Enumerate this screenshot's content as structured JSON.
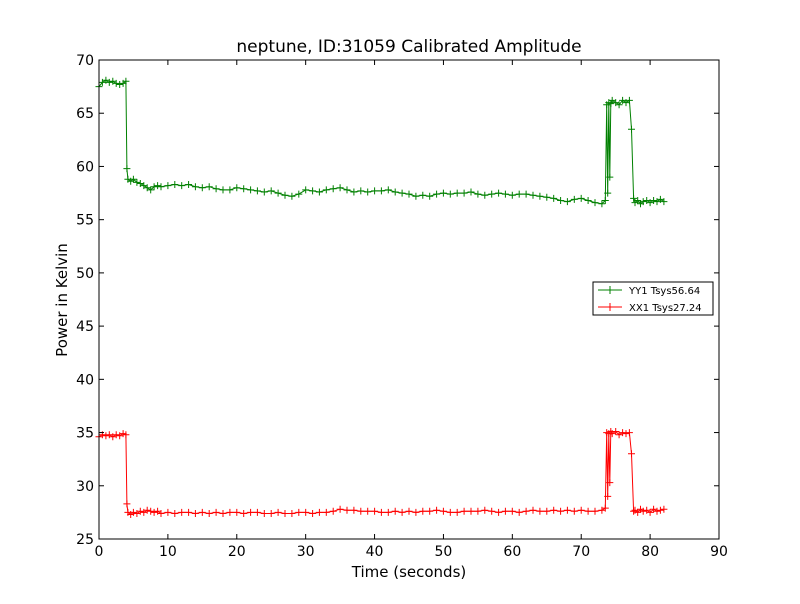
{
  "chart_data": {
    "type": "line",
    "title": "neptune, ID:31059 Calibrated Amplitude",
    "xlabel": "Time (seconds)",
    "ylabel": "Power in Kelvin",
    "xlim": [
      0,
      90
    ],
    "ylim": [
      25,
      70
    ],
    "xticks": [
      0,
      10,
      20,
      30,
      40,
      50,
      60,
      70,
      80,
      90
    ],
    "yticks": [
      25,
      30,
      35,
      40,
      45,
      50,
      55,
      60,
      65,
      70
    ],
    "grid": false,
    "legend_position": "center-right",
    "marker": "plus",
    "series": [
      {
        "name": "YY1 Tsys56.64",
        "color": "#008000",
        "x": [
          0,
          0.5,
          1,
          1.5,
          2,
          2.5,
          3,
          3.5,
          3.9,
          4.05,
          4.2,
          4.6,
          5,
          5.5,
          6,
          6.5,
          7,
          7.5,
          8,
          8.5,
          9,
          10,
          11,
          12,
          13,
          14,
          15,
          16,
          17,
          18,
          19,
          20,
          21,
          22,
          23,
          24,
          25,
          26,
          27,
          28,
          29,
          30,
          31,
          32,
          33,
          34,
          35,
          36,
          37,
          38,
          39,
          40,
          41,
          42,
          43,
          44,
          45,
          46,
          47,
          48,
          49,
          50,
          51,
          52,
          53,
          54,
          55,
          56,
          57,
          58,
          59,
          60,
          61,
          62,
          63,
          64,
          65,
          66,
          67,
          68,
          69,
          70,
          71,
          72,
          73,
          73.5,
          73.7,
          73.85,
          74.0,
          74.15,
          74.3,
          74.5,
          75,
          75.5,
          76,
          76.5,
          77,
          77.3,
          77.6,
          77.8,
          78.2,
          78.6,
          79,
          79.5,
          80,
          80.5,
          81,
          81.5,
          82
        ],
        "y": [
          67.5,
          67.9,
          68.1,
          67.9,
          68.0,
          67.8,
          67.7,
          67.8,
          68.0,
          59.8,
          58.8,
          58.6,
          58.8,
          58.5,
          58.4,
          58.2,
          58.0,
          57.8,
          58.1,
          58.2,
          58.1,
          58.2,
          58.3,
          58.2,
          58.3,
          58.1,
          58.0,
          58.1,
          57.9,
          57.8,
          57.8,
          58.0,
          57.9,
          57.8,
          57.7,
          57.6,
          57.7,
          57.5,
          57.3,
          57.2,
          57.4,
          57.8,
          57.7,
          57.6,
          57.8,
          57.9,
          58.0,
          57.8,
          57.6,
          57.7,
          57.6,
          57.7,
          57.7,
          57.8,
          57.6,
          57.5,
          57.4,
          57.2,
          57.3,
          57.2,
          57.4,
          57.5,
          57.4,
          57.5,
          57.5,
          57.6,
          57.4,
          57.3,
          57.4,
          57.5,
          57.4,
          57.3,
          57.4,
          57.4,
          57.3,
          57.2,
          57.1,
          57.0,
          56.8,
          56.7,
          56.9,
          57.0,
          56.8,
          56.6,
          56.5,
          56.8,
          65.8,
          57.5,
          66.0,
          59.0,
          65.9,
          66.2,
          66.0,
          65.8,
          66.2,
          66.0,
          66.2,
          63.5,
          57.0,
          56.6,
          56.8,
          56.5,
          56.7,
          56.8,
          56.6,
          56.8,
          56.7,
          56.9,
          56.7
        ]
      },
      {
        "name": "XX1 Tsys27.24",
        "color": "#ff0000",
        "x": [
          0,
          0.5,
          1,
          1.5,
          2,
          2.5,
          3,
          3.5,
          3.9,
          4.05,
          4.2,
          4.6,
          5,
          5.5,
          6,
          6.5,
          7,
          7.5,
          8,
          8.5,
          9,
          10,
          11,
          12,
          13,
          14,
          15,
          16,
          17,
          18,
          19,
          20,
          21,
          22,
          23,
          24,
          25,
          26,
          27,
          28,
          29,
          30,
          31,
          32,
          33,
          34,
          35,
          36,
          37,
          38,
          39,
          40,
          41,
          42,
          43,
          44,
          45,
          46,
          47,
          48,
          49,
          50,
          51,
          52,
          53,
          54,
          55,
          56,
          57,
          58,
          59,
          60,
          61,
          62,
          63,
          64,
          65,
          66,
          67,
          68,
          69,
          70,
          71,
          72,
          73,
          73.5,
          73.7,
          73.85,
          74.0,
          74.15,
          74.3,
          74.5,
          75,
          75.5,
          76,
          76.5,
          77,
          77.3,
          77.6,
          77.8,
          78.2,
          78.6,
          79,
          79.5,
          80,
          80.5,
          81,
          81.5,
          82
        ],
        "y": [
          34.6,
          34.8,
          34.7,
          34.8,
          34.6,
          34.8,
          34.7,
          34.9,
          34.8,
          28.3,
          27.5,
          27.3,
          27.5,
          27.4,
          27.6,
          27.5,
          27.7,
          27.6,
          27.5,
          27.6,
          27.4,
          27.5,
          27.4,
          27.5,
          27.5,
          27.4,
          27.5,
          27.4,
          27.5,
          27.4,
          27.5,
          27.5,
          27.4,
          27.5,
          27.5,
          27.4,
          27.4,
          27.5,
          27.4,
          27.4,
          27.5,
          27.5,
          27.4,
          27.5,
          27.5,
          27.6,
          27.8,
          27.7,
          27.7,
          27.6,
          27.6,
          27.6,
          27.5,
          27.5,
          27.6,
          27.5,
          27.6,
          27.5,
          27.6,
          27.6,
          27.7,
          27.6,
          27.5,
          27.5,
          27.6,
          27.6,
          27.6,
          27.7,
          27.6,
          27.5,
          27.6,
          27.6,
          27.5,
          27.6,
          27.7,
          27.6,
          27.6,
          27.7,
          27.6,
          27.7,
          27.6,
          27.7,
          27.6,
          27.6,
          27.7,
          27.9,
          35.0,
          29.0,
          34.9,
          30.3,
          35.1,
          34.9,
          35.1,
          34.8,
          35.0,
          34.9,
          35.0,
          33.0,
          27.6,
          27.7,
          27.5,
          27.8,
          27.6,
          27.7,
          27.5,
          27.8,
          27.6,
          27.7,
          27.8
        ]
      }
    ]
  }
}
